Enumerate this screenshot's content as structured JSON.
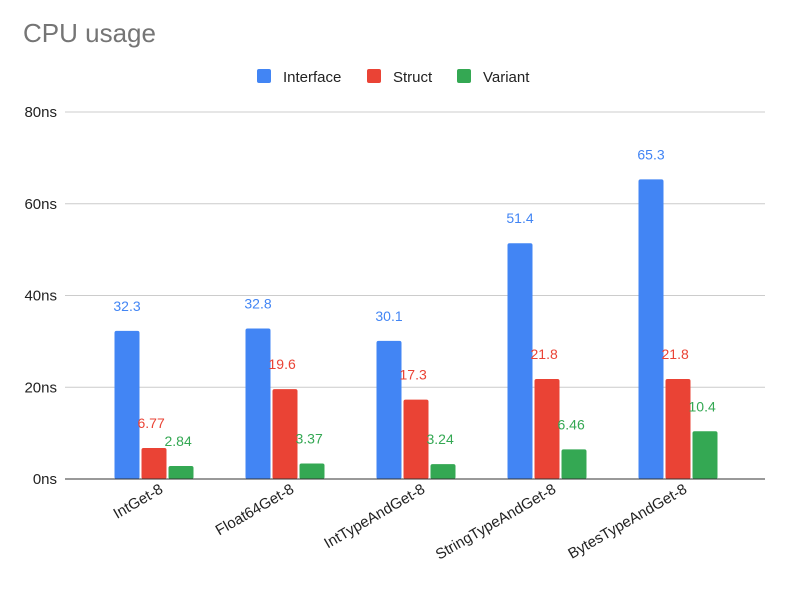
{
  "chart_data": {
    "type": "bar",
    "title": "CPU usage",
    "xlabel": "",
    "ylabel": "",
    "categories": [
      "IntGet-8",
      "Float64Get-8",
      "IntTypeAndGet-8",
      "StringTypeAndGet-8",
      "BytesTypeAndGet-8"
    ],
    "series": [
      {
        "name": "Interface",
        "color": "#4285f4",
        "values": [
          32.3,
          32.8,
          30.1,
          51.4,
          65.3
        ],
        "labels": [
          "32.3",
          "32.8",
          "30.1",
          "51.4",
          "65.3"
        ]
      },
      {
        "name": "Struct",
        "color": "#ea4335",
        "values": [
          6.77,
          19.6,
          17.3,
          21.8,
          21.8
        ],
        "labels": [
          "6.77",
          "19.6",
          "17.3",
          "21.8",
          "21.8"
        ]
      },
      {
        "name": "Variant",
        "color": "#34a853",
        "values": [
          2.84,
          3.37,
          3.24,
          6.46,
          10.4
        ],
        "labels": [
          "2.84",
          "3.37",
          "3.24",
          "6.46",
          "10.4"
        ]
      }
    ],
    "yticks": [
      0,
      20,
      40,
      60,
      80
    ],
    "ytick_labels": [
      "0ns",
      "20ns",
      "40ns",
      "60ns",
      "80ns"
    ],
    "ylim": [
      0,
      80
    ],
    "grid": true,
    "legend_position": "top-center"
  }
}
